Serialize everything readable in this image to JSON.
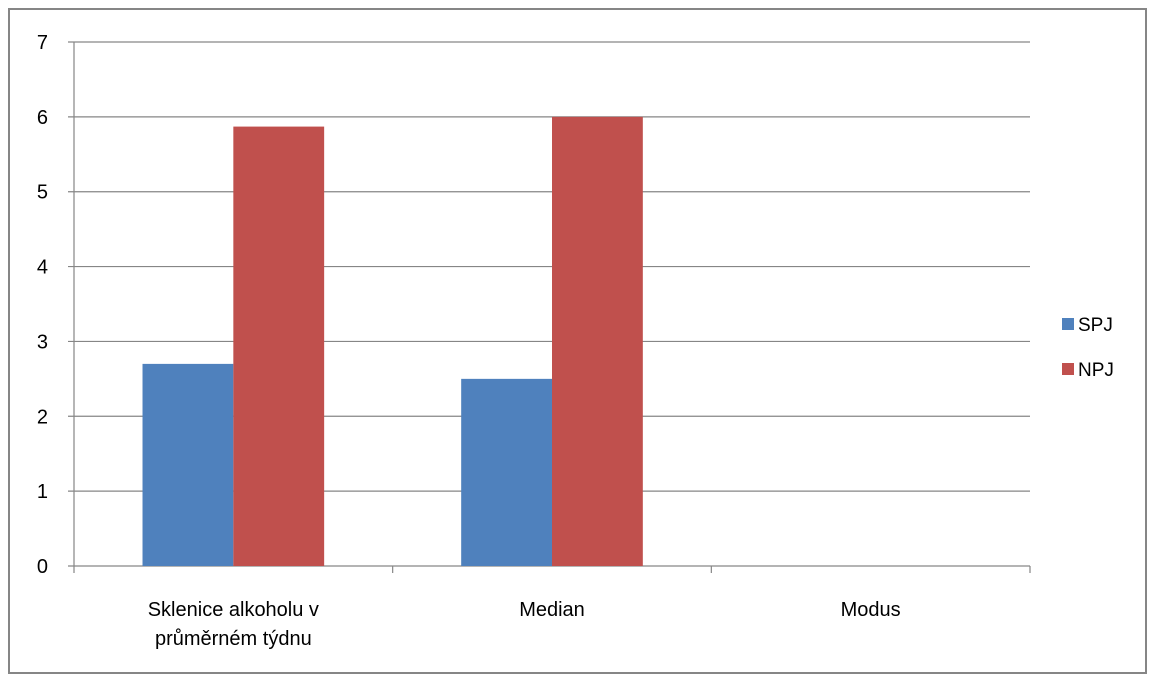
{
  "chart_data": {
    "type": "bar",
    "title": "",
    "xlabel": "",
    "ylabel": "",
    "categories": [
      [
        "Sklenice alkoholu v",
        "průměrném týdnu"
      ],
      [
        "Median"
      ],
      [
        "Modus"
      ]
    ],
    "series": [
      {
        "name": "SPJ",
        "color": "#4F81BD",
        "values": [
          2.7,
          2.5,
          null
        ]
      },
      {
        "name": "NPJ",
        "color": "#C0504D",
        "values": [
          5.87,
          6,
          null
        ]
      }
    ],
    "ylim": [
      0,
      7
    ],
    "yticks": [
      "0",
      "1",
      "2",
      "3",
      "4",
      "5",
      "6",
      "7"
    ],
    "grid": true,
    "gridline_color": "#868686",
    "legend_position": "right"
  }
}
